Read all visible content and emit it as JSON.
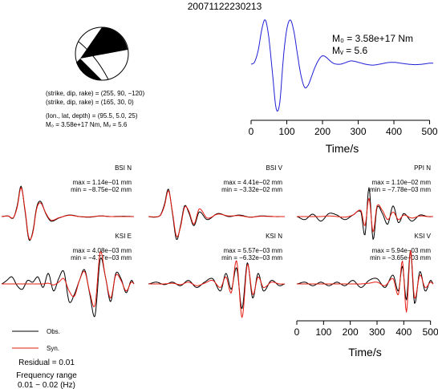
{
  "title": "20071122230213",
  "focal": {
    "plane1": "(strike, dip, rake) = (255, 90, −120)",
    "plane2": "(strike, dip, rake) = (165, 30, 0)",
    "location": "(lon., lat, depth) = (95.5, 5.0, 25)",
    "m0_mw": "M₀ = 3.58e+17 Nm, Mᵥ = 5.6"
  },
  "moment": {
    "m0_label": "M₀ = 3.58e+17 Nm",
    "mw_label": "Mᵥ = 5.6"
  },
  "colors": {
    "observed": "#000000",
    "synthetic": "#e8190f",
    "source_function": "#1f1fd6"
  },
  "legend": {
    "obs": "Obs.",
    "syn": "Syn.",
    "residual": "Residual = 0.01",
    "freq_title": "Frequency range",
    "freq_range": "0.01 − 0.02 (Hz)"
  },
  "chart_data": [
    {
      "type": "line",
      "panel": "source-time-function",
      "xlabel": "Time/s",
      "xlim": [
        0,
        510
      ],
      "xticks": [
        0,
        100,
        200,
        300,
        400,
        500
      ],
      "series": [
        {
          "color": "#1f1fd6",
          "x": [
            0,
            10,
            20,
            30,
            40,
            50,
            60,
            70,
            80,
            90,
            100,
            110,
            120,
            130,
            140,
            150,
            160,
            170,
            180,
            190,
            200,
            210,
            220,
            230,
            240,
            250,
            260,
            270,
            280,
            290,
            300,
            320,
            340,
            360,
            380,
            400,
            420,
            440,
            460,
            480,
            500,
            510
          ],
          "y": [
            0.0,
            0.05,
            0.3,
            0.75,
            0.95,
            0.55,
            -0.2,
            -0.95,
            -0.85,
            0.1,
            0.75,
            0.95,
            0.7,
            0.2,
            -0.25,
            -0.5,
            -0.45,
            -0.25,
            -0.05,
            0.1,
            0.18,
            0.15,
            0.08,
            0.02,
            0.0,
            0.0,
            0.02,
            0.05,
            0.07,
            0.06,
            0.04,
            0.0,
            -0.02,
            0.0,
            0.03,
            0.04,
            0.02,
            0.0,
            -0.01,
            0.0,
            0.02,
            0.02
          ]
        }
      ]
    },
    {
      "type": "line",
      "panel": "waveform",
      "station": "BSI N",
      "max": "max = 1.14e−01 mm",
      "min": "min = −8.75e−02 mm",
      "series": [
        {
          "name": "Obs.",
          "x": [
            0,
            25,
            45,
            60,
            75,
            90,
            105,
            120,
            135,
            150,
            170,
            190,
            220,
            260,
            300,
            340,
            380,
            420,
            470,
            510
          ],
          "y": [
            0.0,
            0.02,
            -0.05,
            0.35,
            1.0,
            0.2,
            -0.75,
            -0.5,
            0.3,
            0.5,
            0.1,
            -0.15,
            -0.05,
            0.05,
            0.0,
            -0.02,
            0.02,
            0.0,
            0.01,
            0.0
          ]
        },
        {
          "name": "Syn.",
          "x": [
            0,
            25,
            45,
            60,
            75,
            90,
            105,
            120,
            135,
            150,
            170,
            190,
            220,
            260,
            300,
            340,
            380,
            420,
            470,
            510
          ],
          "y": [
            0.0,
            0.02,
            -0.04,
            0.3,
            0.95,
            0.25,
            -0.7,
            -0.55,
            0.25,
            0.45,
            0.12,
            -0.12,
            -0.04,
            0.04,
            0.0,
            -0.01,
            0.02,
            0.0,
            0.0,
            0.0
          ]
        }
      ]
    },
    {
      "type": "line",
      "panel": "waveform",
      "station": "BSI V",
      "max": "max = 4.41e−02 mm",
      "min": "min = −3.32e−02 mm",
      "series": [
        {
          "name": "Obs.",
          "x": [
            0,
            25,
            45,
            60,
            75,
            90,
            105,
            120,
            135,
            150,
            170,
            190,
            220,
            260,
            300,
            340,
            380,
            420,
            470,
            510
          ],
          "y": [
            0.0,
            -0.02,
            0.05,
            0.4,
            0.9,
            0.1,
            -0.75,
            -0.3,
            0.35,
            0.15,
            -0.3,
            0.15,
            -0.1,
            0.1,
            0.0,
            0.05,
            -0.02,
            0.02,
            0.0,
            0.0
          ]
        },
        {
          "name": "Syn.",
          "x": [
            0,
            25,
            45,
            60,
            75,
            90,
            105,
            120,
            135,
            150,
            170,
            190,
            220,
            260,
            300,
            340,
            380,
            420,
            470,
            510
          ],
          "y": [
            0.0,
            -0.01,
            0.04,
            0.35,
            0.85,
            0.15,
            -0.65,
            -0.35,
            0.3,
            0.2,
            -0.25,
            0.25,
            -0.05,
            0.08,
            0.02,
            0.03,
            -0.02,
            0.01,
            0.0,
            0.0
          ]
        }
      ]
    },
    {
      "type": "line",
      "panel": "waveform",
      "station": "PPI N",
      "max": "max = 1.10e−02 mm",
      "min": "min = −7.78e−03 mm",
      "series": [
        {
          "name": "Obs.",
          "x": [
            0,
            30,
            60,
            90,
            120,
            150,
            180,
            210,
            240,
            255,
            270,
            285,
            300,
            320,
            340,
            360,
            380,
            400,
            430,
            460,
            490,
            510
          ],
          "y": [
            0.0,
            -0.1,
            0.08,
            -0.15,
            0.1,
            0.05,
            -0.1,
            0.05,
            0.15,
            -0.6,
            0.95,
            -0.75,
            0.3,
            0.1,
            -0.25,
            0.35,
            -0.2,
            0.1,
            -0.15,
            0.05,
            0.0,
            0.0
          ]
        },
        {
          "name": "Syn.",
          "x": [
            0,
            30,
            60,
            90,
            120,
            150,
            180,
            210,
            240,
            255,
            270,
            285,
            300,
            320,
            340,
            360,
            380,
            400,
            430,
            460,
            490,
            510
          ],
          "y": [
            0.0,
            0.0,
            0.0,
            0.0,
            0.02,
            0.0,
            -0.02,
            0.05,
            0.2,
            -0.3,
            0.6,
            -0.5,
            0.35,
            0.2,
            -0.1,
            0.15,
            -0.1,
            0.05,
            -0.05,
            0.02,
            0.0,
            0.0
          ]
        }
      ]
    },
    {
      "type": "line",
      "panel": "waveform",
      "station": "KSI E",
      "max": "max = 4.08e−03 mm",
      "min": "min = −4.77e−03 mm",
      "series": [
        {
          "name": "Obs.",
          "x": [
            0,
            20,
            40,
            60,
            80,
            100,
            120,
            140,
            160,
            180,
            200,
            220,
            240,
            260,
            280,
            300,
            320,
            340,
            360,
            380,
            400,
            420,
            440,
            460,
            480,
            500,
            510
          ],
          "y": [
            0.0,
            0.1,
            0.2,
            -0.05,
            -0.15,
            0.1,
            0.05,
            0.2,
            -0.1,
            0.3,
            -0.2,
            0.15,
            0.35,
            -0.5,
            -0.3,
            0.1,
            0.4,
            -0.3,
            -0.9,
            0.7,
            0.2,
            -0.5,
            0.3,
            0.15,
            -0.25,
            0.1,
            0.0
          ]
        },
        {
          "name": "Syn.",
          "x": [
            0,
            20,
            40,
            60,
            80,
            100,
            120,
            140,
            160,
            180,
            200,
            220,
            240,
            260,
            280,
            300,
            320,
            340,
            360,
            380,
            400,
            420,
            440,
            460,
            480,
            500,
            510
          ],
          "y": [
            0.0,
            0.0,
            0.0,
            0.0,
            0.0,
            0.0,
            0.0,
            0.0,
            0.0,
            0.02,
            -0.03,
            0.05,
            0.15,
            -0.2,
            -0.35,
            0.1,
            0.35,
            -0.25,
            -0.6,
            0.9,
            0.2,
            -0.4,
            0.25,
            0.1,
            -0.2,
            0.05,
            0.0
          ]
        }
      ]
    },
    {
      "type": "line",
      "panel": "waveform",
      "station": "KSI N",
      "max": "max = 5.57e−03 mm",
      "min": "min = −6.32e−03 mm",
      "series": [
        {
          "name": "Obs.",
          "x": [
            0,
            30,
            60,
            90,
            120,
            150,
            180,
            210,
            240,
            270,
            290,
            310,
            330,
            350,
            370,
            390,
            410,
            430,
            460,
            490,
            510
          ],
          "y": [
            0.0,
            0.05,
            -0.02,
            0.05,
            -0.05,
            0.1,
            -0.1,
            0.05,
            0.15,
            -0.2,
            0.3,
            -0.15,
            0.45,
            -0.7,
            0.6,
            -0.4,
            0.3,
            -0.2,
            0.1,
            -0.05,
            0.0
          ]
        },
        {
          "name": "Syn.",
          "x": [
            0,
            30,
            60,
            90,
            120,
            150,
            180,
            210,
            240,
            270,
            290,
            310,
            330,
            350,
            370,
            390,
            410,
            430,
            460,
            490,
            510
          ],
          "y": [
            0.0,
            0.0,
            0.0,
            0.02,
            -0.02,
            0.05,
            -0.05,
            0.02,
            0.1,
            -0.1,
            0.2,
            -0.25,
            0.65,
            -0.95,
            0.55,
            -0.3,
            0.2,
            -0.1,
            0.05,
            0.0,
            0.0
          ]
        }
      ]
    },
    {
      "type": "line",
      "panel": "waveform",
      "station": "KSI V",
      "max": "max = 5.94e−03 mm",
      "min": "min = −3.65e−03 mm",
      "xlabel": "Time/s",
      "xlim": [
        0,
        510
      ],
      "xticks": [
        0,
        100,
        200,
        300,
        400,
        500
      ],
      "series": [
        {
          "name": "Obs.",
          "x": [
            0,
            30,
            60,
            90,
            120,
            150,
            180,
            210,
            240,
            270,
            300,
            330,
            360,
            380,
            395,
            410,
            425,
            440,
            460,
            480,
            500,
            510
          ],
          "y": [
            0.0,
            0.05,
            -0.05,
            0.05,
            -0.05,
            0.05,
            -0.05,
            0.1,
            -0.1,
            0.1,
            0.15,
            -0.1,
            0.25,
            -0.2,
            0.5,
            -0.45,
            0.95,
            -0.55,
            0.35,
            -0.2,
            0.1,
            0.0
          ]
        },
        {
          "name": "Syn.",
          "x": [
            0,
            30,
            60,
            90,
            120,
            150,
            180,
            210,
            240,
            270,
            300,
            330,
            360,
            380,
            395,
            410,
            425,
            440,
            460,
            480,
            500,
            510
          ],
          "y": [
            0.0,
            0.0,
            0.0,
            0.0,
            0.0,
            0.0,
            0.0,
            0.0,
            0.0,
            0.02,
            0.05,
            -0.05,
            0.15,
            -0.3,
            0.65,
            -0.8,
            0.95,
            -0.4,
            0.25,
            -0.1,
            0.05,
            0.0
          ]
        }
      ]
    }
  ]
}
